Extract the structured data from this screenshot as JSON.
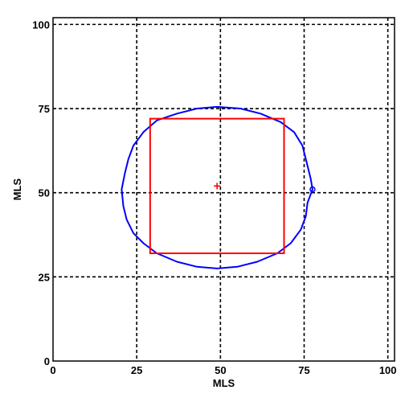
{
  "chart_data": {
    "type": "line",
    "title": "",
    "xlabel": "MLS",
    "ylabel": "MLS",
    "xlim": [
      0,
      102
    ],
    "ylim": [
      0,
      102
    ],
    "xticks": [
      0,
      25,
      50,
      75,
      100
    ],
    "yticks": [
      0,
      25,
      50,
      75,
      100
    ],
    "xtick_labels": [
      "0",
      "25",
      "50",
      "75",
      "100"
    ],
    "ytick_labels": [
      "0",
      "25",
      "50",
      "75",
      "100"
    ],
    "grid": true,
    "grid_style": "dashed",
    "series": [
      {
        "kind": "closed-contour",
        "color": "#0000ff",
        "points": [
          [
            49.0,
            75.5
          ],
          [
            56.0,
            75.0
          ],
          [
            62.0,
            73.5
          ],
          [
            68.0,
            71.0
          ],
          [
            72.0,
            68.0
          ],
          [
            74.5,
            64.0
          ],
          [
            76.0,
            58.0
          ],
          [
            77.0,
            54.0
          ],
          [
            77.5,
            51.0
          ],
          [
            76.0,
            47.0
          ],
          [
            75.5,
            43.0
          ],
          [
            74.0,
            39.0
          ],
          [
            71.0,
            35.0
          ],
          [
            67.0,
            32.0
          ],
          [
            61.0,
            29.5
          ],
          [
            55.0,
            28.0
          ],
          [
            49.0,
            27.5
          ],
          [
            43.0,
            28.0
          ],
          [
            37.0,
            29.5
          ],
          [
            31.0,
            32.0
          ],
          [
            27.0,
            35.0
          ],
          [
            24.0,
            38.0
          ],
          [
            22.0,
            42.0
          ],
          [
            21.0,
            46.0
          ],
          [
            20.5,
            51.0
          ],
          [
            21.5,
            56.0
          ],
          [
            22.5,
            60.0
          ],
          [
            24.0,
            64.0
          ],
          [
            27.0,
            68.0
          ],
          [
            31.0,
            71.5
          ],
          [
            37.0,
            73.5
          ],
          [
            43.0,
            75.0
          ]
        ]
      },
      {
        "kind": "rectangle",
        "color": "#ff0000",
        "x": [
          29,
          69
        ],
        "y": [
          32,
          72
        ]
      },
      {
        "kind": "marker",
        "color": "#ff0000",
        "marker": "+",
        "x": 49,
        "y": 52
      }
    ]
  }
}
